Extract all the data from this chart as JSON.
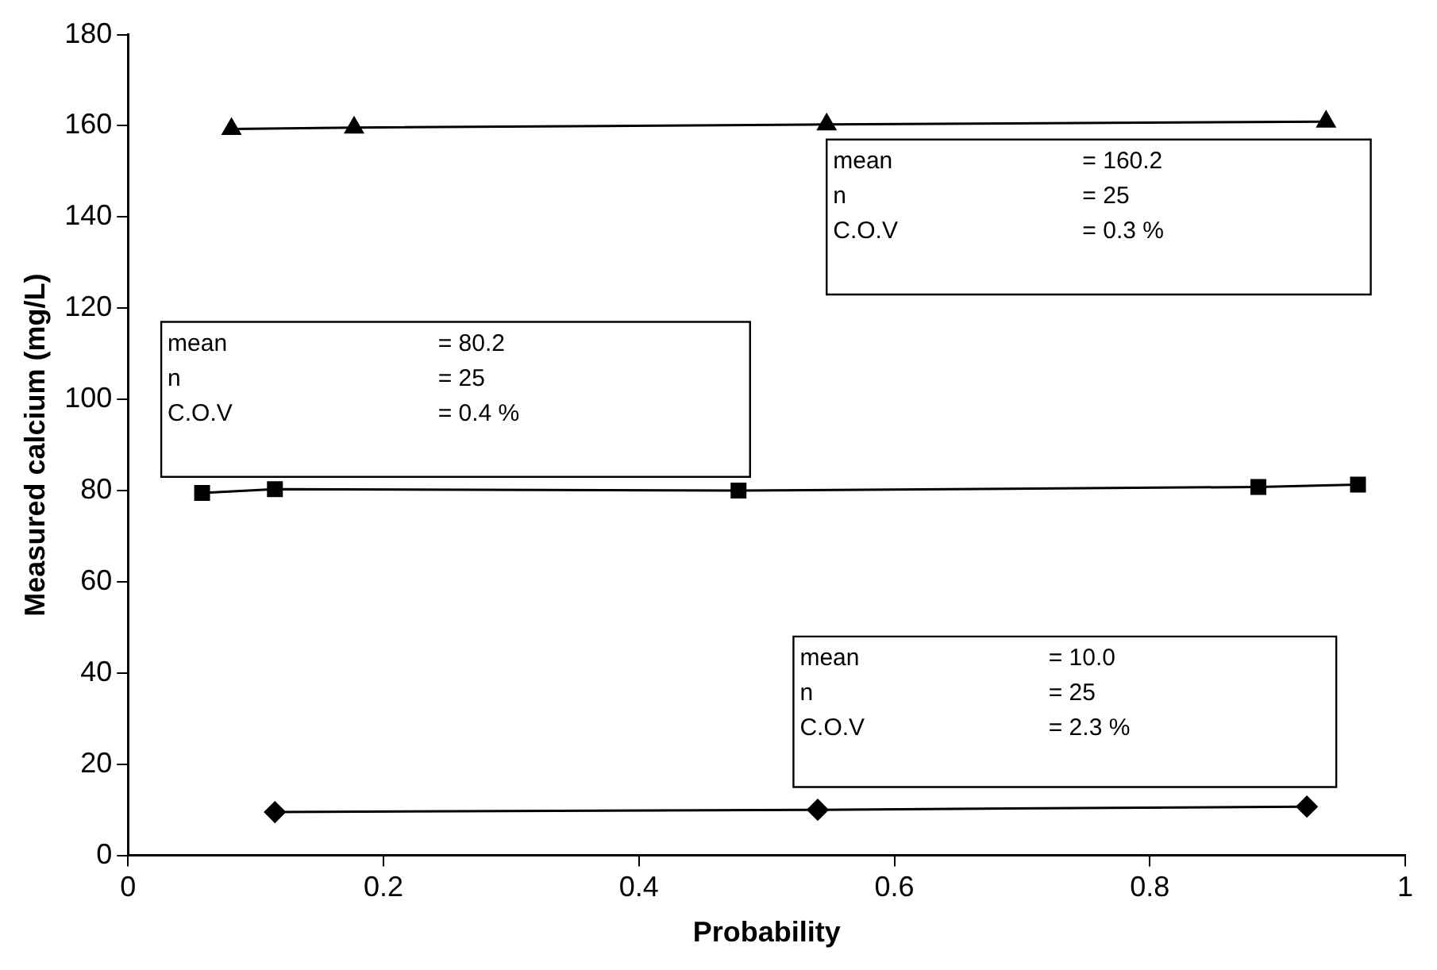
{
  "chart_data": {
    "type": "line",
    "xlabel": "Probability",
    "ylabel": "Measured calcium (mg/L)",
    "xlim": [
      0,
      1
    ],
    "xticks": [
      0,
      0.2,
      0.4,
      0.6,
      0.8,
      1
    ],
    "ylim": [
      0,
      180
    ],
    "yticks": [
      0,
      20,
      40,
      60,
      80,
      100,
      120,
      140,
      160,
      180
    ],
    "grid": false,
    "legend": false,
    "line_style": "solid",
    "series": [
      {
        "color": "#000000",
        "marker": "triangle",
        "x": [
          0.081,
          0.177,
          0.547,
          0.938
        ],
        "values": [
          159.3,
          159.6,
          160.3,
          160.9
        ]
      },
      {
        "color": "#000000",
        "marker": "square",
        "x": [
          0.058,
          0.115,
          0.478,
          0.885,
          0.963
        ],
        "values": [
          79.5,
          80.3,
          80.0,
          80.8,
          81.3
        ]
      },
      {
        "color": "#000000",
        "marker": "diamond",
        "x": [
          0.115,
          0.54,
          0.923
        ],
        "values": [
          9.5,
          10.0,
          10.7
        ]
      }
    ],
    "annotations": [
      "mean",
      "= 160.2",
      "n",
      "= 25",
      "C.O.V",
      "= 0.3 %",
      "mean",
      "= 80.2",
      "n",
      "= 25",
      "C.O.V",
      "= 0.4 %",
      "mean",
      "= 10.0",
      "n",
      "= 25",
      "C.O.V",
      "= 2.3 %"
    ]
  }
}
